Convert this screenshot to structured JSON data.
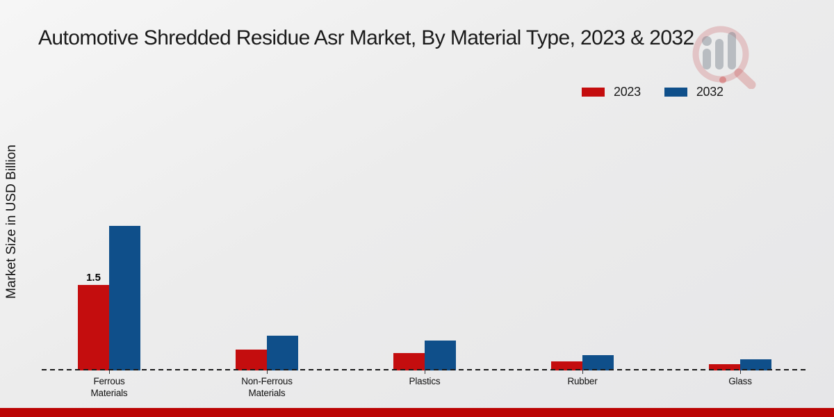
{
  "title": "Automotive Shredded Residue Asr Market, By Material Type, 2023 & 2032",
  "legend": {
    "items": [
      {
        "label": "2023",
        "color": "#c40d0e"
      },
      {
        "label": "2032",
        "color": "#0f4f8a"
      }
    ]
  },
  "colors": {
    "series_2023": "#c40d0e",
    "series_2032": "#0f4f8a",
    "footer_strip": "#bb0404",
    "baseline": "#1a1a1a"
  },
  "watermark": {
    "icon": "magnifier-bar-chart-logo"
  },
  "chart_data": {
    "type": "bar",
    "title": "Automotive Shredded Residue Asr Market, By Material Type, 2023 & 2032",
    "categories": [
      "Ferrous Materials",
      "Non-Ferrous Materials",
      "Plastics",
      "Rubber",
      "Glass"
    ],
    "category_labels": [
      "Ferrous\nMaterials",
      "Non-Ferrous\nMaterials",
      "Plastics",
      "Rubber",
      "Glass"
    ],
    "series": [
      {
        "name": "2023",
        "color": "#c40d0e",
        "values": [
          1.5,
          0.37,
          0.3,
          0.16,
          0.11
        ]
      },
      {
        "name": "2032",
        "color": "#0f4f8a",
        "values": [
          2.54,
          0.61,
          0.53,
          0.27,
          0.2
        ]
      }
    ],
    "xlabel": "",
    "ylabel": "Market Size in USD Billion",
    "ylim": [
      0,
      2.8
    ],
    "grid": false,
    "y_axis_ticks_visible": false,
    "legend_position": "top-right",
    "baseline_style": "dashed-zero-line",
    "annotations": [
      {
        "series_index": 0,
        "category_index": 0,
        "text": "1.5",
        "value": 1.5
      }
    ]
  }
}
